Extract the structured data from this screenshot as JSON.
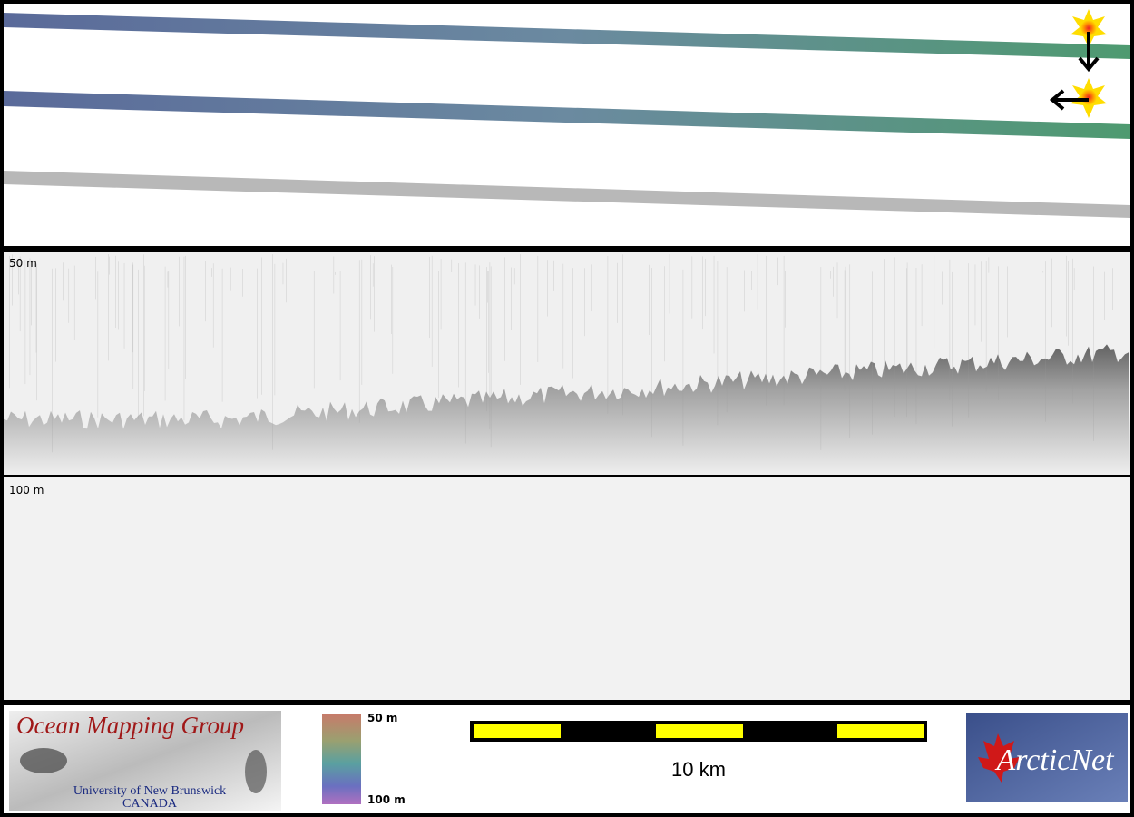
{
  "profile": {
    "upper_depth_label": "50 m",
    "lower_depth_label": "100 m"
  },
  "legend": {
    "top_label": "50 m",
    "bottom_label": "100 m"
  },
  "scale_bar": {
    "label": "10 km"
  },
  "logos": {
    "omg": {
      "title": "Ocean Mapping Group",
      "university": "University of New Brunswick",
      "country": "CANADA"
    },
    "arcticnet": "ArcticNet"
  }
}
